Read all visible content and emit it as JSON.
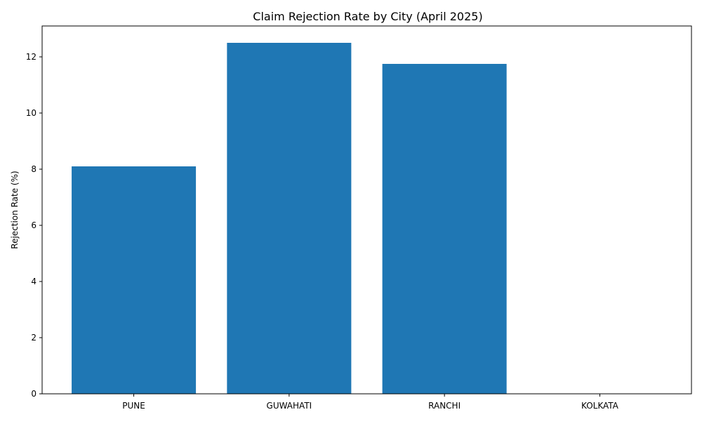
{
  "chart_data": {
    "type": "bar",
    "title": "Claim Rejection Rate by City (April 2025)",
    "xlabel": "",
    "ylabel": "Rejection Rate (%)",
    "categories": [
      "PUNE",
      "GUWAHATI",
      "RANCHI",
      "KOLKATA"
    ],
    "values": [
      8.1,
      12.5,
      11.75,
      0
    ],
    "ylim": [
      0,
      13.1
    ],
    "yticks": [
      0,
      2,
      4,
      6,
      8,
      10,
      12
    ],
    "ytick_labels": [
      "0",
      "2",
      "4",
      "6",
      "8",
      "10",
      "12"
    ],
    "grid": false,
    "legend": "none",
    "colors": {
      "bar": "#1f77b4",
      "axis": "#000000",
      "background": "#ffffff"
    }
  }
}
